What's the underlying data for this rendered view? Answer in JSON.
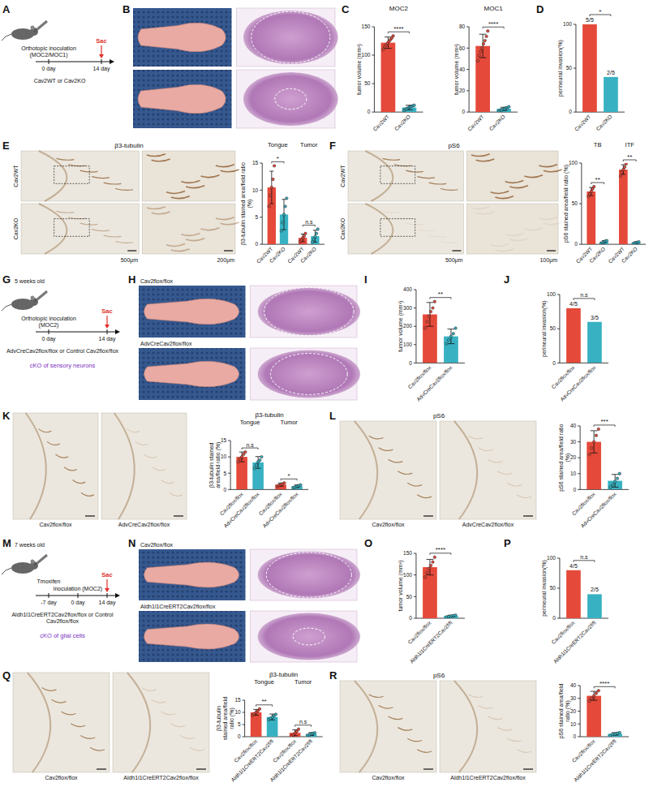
{
  "figure": {
    "schemas": [
      {
        "letter": "A",
        "mouse_label": "Cav2WT or Cav2KO",
        "ticks": [
          {
            "label": "0 day",
            "event": "Orthotopic inoculation (MOC2/MOC1)"
          },
          {
            "label": "14 day",
            "sac": "Sac"
          }
        ]
      },
      {
        "letter": "G",
        "top_note": "5 weeks old",
        "mouse_label": "AdvCreCav2flox/flox or Control Cav2flox/flox",
        "ticks": [
          {
            "label": "0 day",
            "event": "Orthotopic inoculation (MOC2)"
          },
          {
            "label": "14 day",
            "sac": "Sac"
          }
        ],
        "footer": "cKO of sensory neurons"
      },
      {
        "letter": "M",
        "top_note": "7 weeks old",
        "mouse_label": "Aldh1l1CreERT2Cav2flox/flox or Control Cav2flox/flox",
        "ticks": [
          {
            "label": "-7 day",
            "event": "Tmoxifen"
          },
          {
            "label": "0 day",
            "event": "inoculation (MOC2)"
          },
          {
            "label": "14 day",
            "sac": "Sac"
          }
        ],
        "footer": "cKO of glial cells"
      }
    ],
    "image_panels": [
      {
        "letter": "B",
        "kind": "photo_he"
      },
      {
        "letter": "E",
        "kind": "ihc_rows",
        "title": "β3-tubulin",
        "labels": [
          "Cav2WT",
          "Cav2KO"
        ],
        "scale_bars": [
          "500μm",
          "200μm"
        ]
      },
      {
        "letter": "F",
        "kind": "ihc_rows",
        "title": "pS6",
        "labels": [
          "Cav2WT",
          "Cav2KO"
        ],
        "scale_bars": [
          "500μm",
          "100μm"
        ]
      },
      {
        "letter": "H",
        "kind": "photo_he",
        "labels": [
          "Cav2flox/flox",
          "AdvCreCav2flox/flox"
        ]
      },
      {
        "letter": "K",
        "kind": "ihc_cols",
        "labels": [
          "Cav2flox/flox",
          "AdvCreCav2flox/flox"
        ]
      },
      {
        "letter": "L",
        "kind": "ihc_cols",
        "title": "pS6",
        "labels": [
          "Cav2flox/flox",
          "AdvCreCav2flox/flox"
        ]
      },
      {
        "letter": "N",
        "kind": "photo_he",
        "labels": [
          "Cav2flox/flox",
          "Aldh1l1CreERT2Cav2flox/flox"
        ]
      },
      {
        "letter": "Q",
        "kind": "ihc_cols",
        "labels": [
          "Cav2flox/flox",
          "Aldh1l1CreERT2Cav2flox/flox"
        ]
      },
      {
        "letter": "R",
        "kind": "ihc_cols",
        "title": "pS6",
        "labels": [
          "Cav2flox/flox",
          "Aldh1l1CreERT2Cav2flox/flox"
        ]
      }
    ]
  },
  "chart_data": [
    {
      "panel": "C",
      "type": "bar",
      "title": "MOC2",
      "y_label": "tumor volume (mm³)",
      "categories": [
        "Cav2WT",
        "Cav2KO"
      ],
      "values": [
        122,
        8
      ],
      "errors": [
        10,
        4
      ],
      "points": [
        [
          110,
          115,
          118,
          121,
          124,
          127,
          130,
          134
        ],
        [
          3,
          5,
          6,
          8,
          9,
          10,
          11,
          12
        ]
      ],
      "colors": [
        "#e5493a",
        "#38b2c2"
      ],
      "ylim": [
        0,
        150
      ],
      "yticks": [
        0,
        50,
        100,
        150
      ],
      "significance": [
        "****"
      ]
    },
    {
      "type": "bar",
      "title": "MOC1",
      "y_label": "tumor volume (mm³)",
      "categories": [
        "Cav2WT",
        "Cav2KO"
      ],
      "values": [
        62,
        3
      ],
      "errors": [
        11,
        1.5
      ],
      "points": [
        [
          48,
          53,
          57,
          60,
          64,
          67,
          71,
          76
        ],
        [
          1,
          2,
          2,
          3,
          3,
          4,
          4,
          5
        ]
      ],
      "colors": [
        "#e5493a",
        "#38b2c2"
      ],
      "ylim": [
        0,
        80
      ],
      "yticks": [
        0,
        20,
        40,
        60,
        80
      ],
      "significance": [
        "****"
      ]
    },
    {
      "panel": "D",
      "type": "bar",
      "y_label": "perineural invasion(%)",
      "categories": [
        "Cav2WT",
        "Cav2KO"
      ],
      "values": [
        100,
        40
      ],
      "fraction_labels": [
        "5/5",
        "2/5"
      ],
      "colors": [
        "#e5493a",
        "#38b2c2"
      ],
      "ylim": [
        0,
        100
      ],
      "yticks": [
        0,
        50,
        100
      ],
      "significance": [
        "*"
      ]
    },
    {
      "type": "bar",
      "y_label": "β3-tubulin stained area/field ratio (%)",
      "groups": [
        "Tongue",
        "Tumor"
      ],
      "categories": [
        "Cav2WT",
        "Cav2KO",
        "Cav2WT",
        "Cav2KO"
      ],
      "values": [
        10.5,
        5.5,
        1.2,
        1.5
      ],
      "errors": [
        3,
        2.8,
        0.7,
        1.1
      ],
      "points": [
        [
          7,
          9,
          10.5,
          12,
          14.5
        ],
        [
          2.5,
          4,
          5.5,
          7,
          8.5
        ],
        [
          0.5,
          0.8,
          1.2,
          1.5,
          2
        ],
        [
          0.4,
          0.9,
          1.4,
          2,
          2.8
        ]
      ],
      "colors": [
        "#e5493a",
        "#38b2c2",
        "#e5493a",
        "#38b2c2"
      ],
      "ylim": [
        0,
        15
      ],
      "yticks": [
        0,
        5,
        10,
        15
      ],
      "significance": [
        "*",
        "n.s"
      ]
    },
    {
      "type": "bar",
      "y_label": "pS6 stained area/field ratio (%)",
      "groups": [
        "TB",
        "ITF"
      ],
      "categories": [
        "Cav2WT",
        "Cav2KO",
        "Cav2WT",
        "Cav2KO"
      ],
      "values": [
        65,
        3,
        92,
        2
      ],
      "errors": [
        5,
        1.5,
        6,
        1
      ],
      "points": [
        [
          59,
          62,
          65,
          68,
          71
        ],
        [
          1.5,
          2,
          3,
          4,
          4.5
        ],
        [
          84,
          89,
          92,
          95,
          99
        ],
        [
          1,
          1.5,
          2,
          2.5,
          3
        ]
      ],
      "colors": [
        "#e5493a",
        "#38b2c2",
        "#e5493a",
        "#38b2c2"
      ],
      "ylim": [
        0,
        100
      ],
      "yticks": [
        0,
        50,
        100
      ],
      "significance": [
        "**",
        "**"
      ]
    },
    {
      "panel": "I",
      "type": "bar",
      "y_label": "tumor volume (mm³)",
      "categories": [
        "Cav2flox/flox",
        "AdvCreCav2flox/flox"
      ],
      "values": [
        265,
        145
      ],
      "errors": [
        65,
        40
      ],
      "points": [
        [
          190,
          225,
          255,
          280,
          300,
          335
        ],
        [
          105,
          125,
          145,
          160,
          190
        ]
      ],
      "colors": [
        "#e5493a",
        "#38b2c2"
      ],
      "ylim": [
        0,
        400
      ],
      "yticks": [
        0,
        100,
        200,
        300,
        400
      ],
      "significance": [
        "**"
      ]
    },
    {
      "panel": "J",
      "type": "bar",
      "y_label": "perineural invasion(%)",
      "categories": [
        "Cav2flox/flox",
        "AdvCreCav2flox/flox"
      ],
      "values": [
        80,
        60
      ],
      "fraction_labels": [
        "4/5",
        "3/5"
      ],
      "colors": [
        "#e5493a",
        "#38b2c2"
      ],
      "ylim": [
        0,
        100
      ],
      "yticks": [
        0,
        50,
        100
      ],
      "significance": [
        "n.s"
      ]
    },
    {
      "type": "bar",
      "title": "β3-tubulin",
      "y_label": "β3-tubulin stained area/field ratio (%)",
      "groups": [
        "Tongue",
        "Tumor"
      ],
      "categories": [
        "Cav2flox/flox",
        "AdvCreCav2flox/flox",
        "Cav2flox/flox",
        "AdvCreCav2flox/flox"
      ],
      "values": [
        10,
        8.3,
        1.5,
        1.0
      ],
      "errors": [
        1.5,
        1.8,
        0.5,
        0.4
      ],
      "points": [
        [
          8.5,
          9.5,
          10,
          10.8,
          11.5
        ],
        [
          6.5,
          7.5,
          8.5,
          9,
          10
        ],
        [
          1,
          1.3,
          1.5,
          1.7,
          2
        ],
        [
          0.6,
          0.8,
          1,
          1.2,
          1.4
        ]
      ],
      "colors": [
        "#e5493a",
        "#38b2c2",
        "#e5493a",
        "#38b2c2"
      ],
      "ylim": [
        0,
        15
      ],
      "yticks": [
        0,
        5,
        10,
        15
      ],
      "significance": [
        "n.s",
        "*"
      ]
    },
    {
      "type": "bar",
      "y_label": "pS6 stained area/field ratio (%)",
      "categories": [
        "Cav2flox/flox",
        "AdvCreCav2flox/flox"
      ],
      "values": [
        30,
        5.5
      ],
      "errors": [
        7,
        4
      ],
      "points": [
        [
          22,
          26,
          30,
          34,
          38
        ],
        [
          1.5,
          3,
          5,
          7,
          10
        ]
      ],
      "colors": [
        "#e5493a",
        "#38b2c2"
      ],
      "ylim": [
        0,
        40
      ],
      "yticks": [
        0,
        10,
        20,
        30,
        40
      ],
      "significance": [
        "***"
      ]
    },
    {
      "panel": "O",
      "type": "bar",
      "y_label": "tumor volume (mm³)",
      "categories": [
        "Cav2flox/flox",
        "Aldh1l1CreERT2Cav2f/fl"
      ],
      "values": [
        118,
        5
      ],
      "errors": [
        18,
        2
      ],
      "points": [
        [
          95,
          105,
          115,
          122,
          130,
          141
        ],
        [
          3,
          4,
          5,
          6,
          7
        ]
      ],
      "colors": [
        "#e5493a",
        "#38b2c2"
      ],
      "ylim": [
        0,
        150
      ],
      "yticks": [
        0,
        50,
        100,
        150
      ],
      "significance": [
        "****"
      ]
    },
    {
      "panel": "P",
      "type": "bar",
      "y_label": "perineural invasion(%)",
      "categories": [
        "Cav2flox/flox",
        "Aldh1l1CreERT2Cav2f/fl"
      ],
      "values": [
        80,
        40
      ],
      "fraction_labels": [
        "4/5",
        "2/5"
      ],
      "colors": [
        "#e5493a",
        "#38b2c2"
      ],
      "ylim": [
        0,
        100
      ],
      "yticks": [
        0,
        50,
        100
      ],
      "significance": [
        "n.s"
      ]
    },
    {
      "type": "bar",
      "title": "β3-tubulin",
      "y_label": "β3-tubulin stained area/field ratio (%)",
      "groups": [
        "Tongue",
        "Tumor"
      ],
      "categories": [
        "Cav2flox/flox",
        "Aldh1l1CreERT2Cav2f/fl",
        "Cav2flox/flox",
        "Aldh1l1CreERT2Cav2f/fl"
      ],
      "values": [
        10,
        8.1,
        1.6,
        1.1
      ],
      "errors": [
        1.2,
        1.2,
        1.2,
        0.6
      ],
      "points": [
        [
          8.8,
          9.4,
          10,
          10.6,
          11.4
        ],
        [
          7,
          7.5,
          8,
          8.6,
          9.2
        ],
        [
          0.3,
          0.8,
          1.5,
          2.2,
          3.1
        ],
        [
          0.5,
          0.8,
          1.1,
          1.3,
          1.6
        ]
      ],
      "colors": [
        "#e5493a",
        "#38b2c2",
        "#e5493a",
        "#38b2c2"
      ],
      "ylim": [
        0,
        15
      ],
      "yticks": [
        0,
        5,
        10,
        15
      ],
      "significance": [
        "**",
        "n.s"
      ]
    },
    {
      "type": "bar",
      "y_label": "pS6 stained area/field ratio (%)",
      "categories": [
        "Cav2flox/flox",
        "Aldh1l1CreERT2Cav2f/fl"
      ],
      "values": [
        32,
        2.2
      ],
      "errors": [
        3.5,
        1
      ],
      "points": [
        [
          28,
          30,
          32,
          34,
          36
        ],
        [
          1,
          1.8,
          2.2,
          2.6,
          3.2
        ]
      ],
      "colors": [
        "#e5493a",
        "#38b2c2"
      ],
      "ylim": [
        0,
        40
      ],
      "yticks": [
        0,
        10,
        20,
        30,
        40
      ],
      "significance": [
        "****"
      ]
    }
  ]
}
